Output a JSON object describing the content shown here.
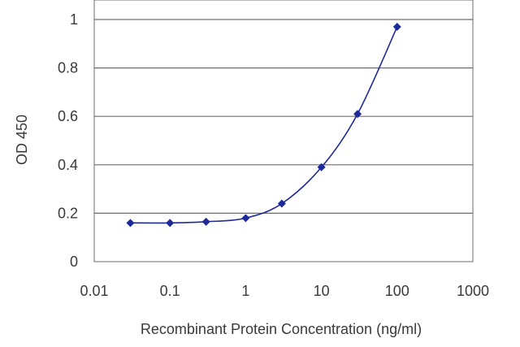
{
  "chart_data": {
    "type": "line",
    "title": "",
    "xlabel": "Recombinant Protein Concentration (ng/ml)",
    "ylabel": "OD 450",
    "x_scale": "log",
    "xlim": [
      0.01,
      1000
    ],
    "ylim": [
      0,
      1
    ],
    "x_ticks": [
      "0.01",
      "0.1",
      "1",
      "10",
      "100",
      "1000"
    ],
    "y_ticks": [
      "0",
      "0.2",
      "0.4",
      "0.6",
      "0.8",
      "1"
    ],
    "grid": "horizontal",
    "legend": "none",
    "series": [
      {
        "color": "#1f2a9a",
        "marker": "diamond",
        "x": [
          0.03,
          0.1,
          0.3,
          1,
          3,
          10,
          30,
          100
        ],
        "y": [
          0.16,
          0.16,
          0.165,
          0.18,
          0.24,
          0.39,
          0.61,
          0.97
        ]
      }
    ]
  }
}
